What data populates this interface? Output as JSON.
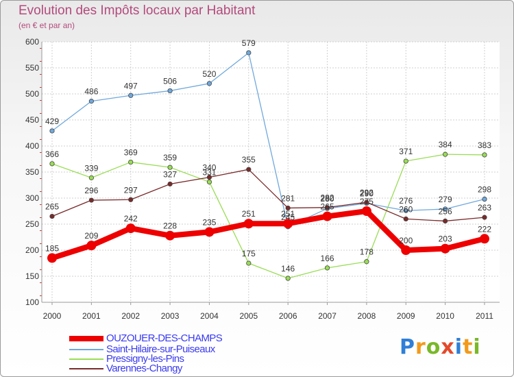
{
  "title": "Evolution des Impôts locaux par Habitant",
  "subtitle": "(en € et par an)",
  "logo": {
    "text": "Proxiti",
    "letters": [
      "P",
      "r",
      "o",
      "x",
      "i",
      "t",
      "i"
    ],
    "colors": [
      "#2f7fd6",
      "#f29a1a",
      "#79b829",
      "#e34a2b",
      "#2f7fd6",
      "#f29a1a",
      "#79b829"
    ]
  },
  "chart_data": {
    "type": "line",
    "title": "Evolution des Impôts locaux par Habitant",
    "subtitle": "(en € et par an)",
    "xlabel": "",
    "ylabel": "",
    "x": [
      "2000",
      "2001",
      "2002",
      "2003",
      "2004",
      "2005",
      "2006",
      "2007",
      "2008",
      "2009",
      "2010",
      "2011"
    ],
    "ylim": [
      100,
      600
    ],
    "yticks": [
      "100",
      "150",
      "200",
      "250",
      "300",
      "350",
      "400",
      "450",
      "500",
      "550",
      "600"
    ],
    "grid": true,
    "legend_position": "bottom-left",
    "series": [
      {
        "name": "OUZOUER-DES-CHAMPS",
        "color": "#ee0000",
        "values": [
          185,
          209,
          242,
          228,
          235,
          251,
          251,
          265,
          275,
          200,
          203,
          222
        ],
        "labels": [
          "185",
          "209",
          "242",
          "228",
          "235",
          "251",
          "251",
          "265",
          "275",
          "200",
          "203",
          "222"
        ]
      },
      {
        "name": "Saint-Hilaire-sur-Puiseaux",
        "color": "#6fa8dc",
        "values": [
          429,
          486,
          497,
          506,
          520,
          579,
          245,
          280,
          290,
          276,
          279,
          298
        ],
        "labels": [
          "429",
          "486",
          "497",
          "506",
          "520",
          "579",
          "245",
          "280",
          "290",
          "276",
          "279",
          "298"
        ]
      },
      {
        "name": "Pressigny-les-Pins",
        "color": "#99dd55",
        "values": [
          366,
          339,
          369,
          359,
          331,
          175,
          146,
          166,
          178,
          371,
          384,
          383
        ],
        "labels": [
          "366",
          "339",
          "369",
          "359",
          "331",
          "175",
          "146",
          "166",
          "178",
          "371",
          "384",
          "383"
        ]
      },
      {
        "name": "Varennes-Changy",
        "color": "#7a2a2a",
        "values": [
          265,
          296,
          297,
          327,
          340,
          355,
          281,
          282,
          292,
          260,
          256,
          263
        ],
        "labels": [
          "265",
          "296",
          "297",
          "327",
          "340",
          "355",
          "281",
          "282",
          "292",
          "260",
          "256",
          "263"
        ]
      }
    ]
  }
}
